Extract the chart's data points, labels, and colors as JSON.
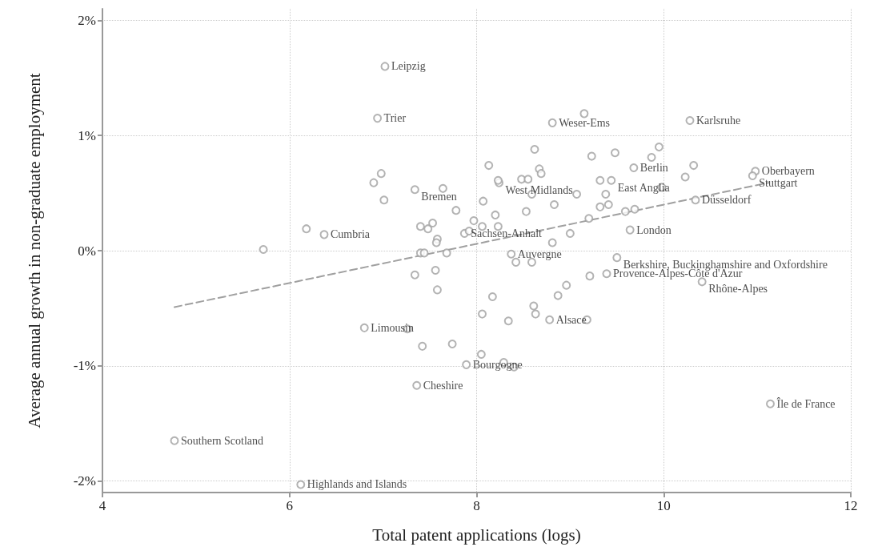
{
  "chart_data": {
    "type": "scatter",
    "xlabel": "Total patent applications (logs)",
    "ylabel": "Average annual growth in non-graduate employment",
    "xlim": [
      4,
      12
    ],
    "xticks": [
      4,
      6,
      8,
      10,
      12
    ],
    "ylim": [
      -2.1,
      2.1
    ],
    "yticks": [
      {
        "value": -2,
        "label": "-2%"
      },
      {
        "value": -1,
        "label": "-1%"
      },
      {
        "value": 0,
        "label": "0%"
      },
      {
        "value": 1,
        "label": "1%"
      },
      {
        "value": 2,
        "label": "2%"
      }
    ],
    "grid": true,
    "marker": "circle",
    "series": [
      {
        "color": "#a0a0a0",
        "x": [
          7.02,
          6.94,
          8.81,
          10.28,
          9.68,
          9.44,
          8.24,
          7.34,
          10.98,
          10.95,
          10.34,
          6.37,
          7.87,
          9.64,
          8.37,
          9.5,
          9.39,
          10.41,
          8.78,
          6.8,
          7.89,
          7.36,
          11.14,
          4.77,
          6.12,
          5.72,
          6.18,
          6.98,
          6.9,
          7.01,
          7.64,
          7.78,
          7.4,
          7.48,
          7.53,
          7.58,
          7.57,
          7.4,
          7.44,
          7.68,
          7.34,
          7.56,
          7.58,
          7.26,
          7.42,
          7.74,
          8.05,
          8.29,
          8.4,
          8.13,
          8.62,
          8.67,
          8.69,
          8.23,
          8.48,
          8.55,
          8.59,
          8.07,
          8.83,
          7.97,
          8.2,
          8.53,
          8.06,
          8.23,
          7.92,
          8.81,
          8.42,
          8.59,
          9.21,
          8.96,
          8.87,
          8.17,
          8.06,
          8.34,
          8.61,
          8.63,
          9.18,
          9.15,
          9.23,
          9.48,
          9.95,
          9.87,
          10.32,
          10.23,
          9.98,
          9.32,
          9.07,
          9.38,
          9.32,
          9.41,
          9.2,
          9.59,
          9.69,
          9.0
        ],
        "values": [
          1.6,
          1.15,
          1.11,
          1.13,
          0.72,
          0.61,
          0.59,
          0.53,
          0.69,
          0.65,
          0.44,
          0.14,
          0.15,
          0.18,
          -0.03,
          -0.06,
          -0.2,
          -0.27,
          -0.6,
          -0.67,
          -0.99,
          -1.17,
          -1.33,
          -1.65,
          -2.03,
          0.01,
          0.19,
          0.67,
          0.59,
          0.44,
          0.54,
          0.35,
          0.21,
          0.19,
          0.24,
          0.1,
          0.07,
          -0.02,
          -0.02,
          -0.02,
          -0.21,
          -0.17,
          -0.34,
          -0.68,
          -0.83,
          -0.81,
          -0.9,
          -0.97,
          -1.01,
          0.74,
          0.88,
          0.71,
          0.67,
          0.61,
          0.62,
          0.62,
          0.49,
          0.43,
          0.4,
          0.26,
          0.31,
          0.34,
          0.21,
          0.21,
          0.17,
          0.07,
          -0.1,
          -0.1,
          -0.22,
          -0.3,
          -0.39,
          -0.4,
          -0.55,
          -0.61,
          -0.48,
          -0.55,
          -0.6,
          1.19,
          0.82,
          0.85,
          0.9,
          0.81,
          0.74,
          0.64,
          0.55,
          0.61,
          0.49,
          0.49,
          0.38,
          0.4,
          0.28,
          0.34,
          0.36,
          0.15
        ]
      },
      {
        "type": "line",
        "color": "#a0a0a0",
        "line_style": "dashed",
        "marker": "none",
        "x": [
          4.77,
          11.12
        ],
        "values": [
          -0.49,
          0.59
        ]
      }
    ],
    "annotations": [
      {
        "text": "Leipzig",
        "x": 7.02,
        "y": 1.6
      },
      {
        "text": "Trier",
        "x": 6.94,
        "y": 1.15
      },
      {
        "text": "Weser-Ems",
        "x": 8.81,
        "y": 1.11
      },
      {
        "text": "Karlsruhe",
        "x": 10.28,
        "y": 1.13
      },
      {
        "text": "Berlin",
        "x": 9.68,
        "y": 0.72
      },
      {
        "text": "East Anglia",
        "x": 9.44,
        "y": 0.61
      },
      {
        "text": "West Midlands",
        "x": 8.24,
        "y": 0.59
      },
      {
        "text": "Bremen",
        "x": 7.34,
        "y": 0.53
      },
      {
        "text": "Oberbayern",
        "x": 10.98,
        "y": 0.69
      },
      {
        "text": "Stuttgart",
        "x": 10.95,
        "y": 0.65
      },
      {
        "text": "Düsseldorf",
        "x": 10.34,
        "y": 0.44
      },
      {
        "text": "Cumbria",
        "x": 6.37,
        "y": 0.14
      },
      {
        "text": "Sachsen-Anhalt",
        "x": 7.87,
        "y": 0.15
      },
      {
        "text": "London",
        "x": 9.64,
        "y": 0.18
      },
      {
        "text": "Auvergne",
        "x": 8.37,
        "y": -0.03
      },
      {
        "text": "Berkshire, Buckinghamshire and Oxfordshire",
        "x": 9.5,
        "y": -0.06
      },
      {
        "text": "Provence-Alpes-Côte d'Azur",
        "x": 9.39,
        "y": -0.2
      },
      {
        "text": "Rhône-Alpes",
        "x": 10.41,
        "y": -0.27
      },
      {
        "text": "Alsace",
        "x": 8.78,
        "y": -0.6
      },
      {
        "text": "Limousin",
        "x": 6.8,
        "y": -0.67
      },
      {
        "text": "Bourgogne",
        "x": 7.89,
        "y": -0.99
      },
      {
        "text": "Cheshire",
        "x": 7.36,
        "y": -1.17
      },
      {
        "text": "Île de France",
        "x": 11.14,
        "y": -1.33
      },
      {
        "text": "Southern Scotland",
        "x": 4.77,
        "y": -1.65
      },
      {
        "text": "Highlands and Islands",
        "x": 6.12,
        "y": -2.03
      }
    ]
  }
}
